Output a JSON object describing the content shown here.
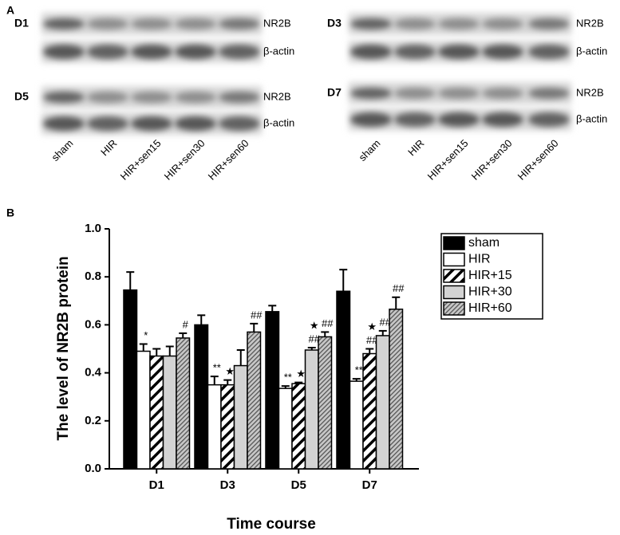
{
  "blots": {
    "panel_label": "A",
    "lanes": [
      "sham",
      "HIR",
      "HIR+sen15",
      "HIR+sen30",
      "HIR+sen60"
    ],
    "panels": [
      {
        "label": "D1",
        "rows": [
          "NR2B",
          "β-actin"
        ]
      },
      {
        "label": "D3",
        "rows": [
          "NR2B",
          "β-actin"
        ]
      },
      {
        "label": "D5",
        "rows": [
          "NR2B",
          "β-actin"
        ]
      },
      {
        "label": "D7",
        "rows": [
          "NR2B",
          "β-actin"
        ]
      }
    ]
  },
  "chart_data": {
    "type": "bar",
    "panel_label": "B",
    "ylabel": "The level of NR2B protein",
    "xlabel": "Time course",
    "categories": [
      "D1",
      "D3",
      "D5",
      "D7"
    ],
    "ylim": [
      0,
      1.0
    ],
    "yticks": [
      {
        "value": 0,
        "label": "0.0"
      },
      0.2,
      0.4,
      0.6,
      0.8,
      {
        "value": 1.0,
        "label": "1.0"
      }
    ],
    "legend": "upper right",
    "series": [
      {
        "name": "sham",
        "color": "#000000",
        "values": [
          0.745,
          0.6,
          0.655,
          0.74
        ],
        "errors": [
          0.075,
          0.04,
          0.025,
          0.09
        ],
        "annotations": [
          null,
          null,
          null,
          null
        ]
      },
      {
        "name": "HIR",
        "color": "#ffffff",
        "values": [
          0.49,
          0.35,
          0.335,
          0.365
        ],
        "errors": [
          0.03,
          0.035,
          0.01,
          0.01
        ],
        "annotations": [
          [
            "*"
          ],
          [
            "**"
          ],
          [
            "**"
          ],
          [
            "**"
          ]
        ]
      },
      {
        "name": "HIR+15",
        "color": "#ffffff",
        "pattern": "wide-hatch",
        "values": [
          0.47,
          0.35,
          0.355,
          0.48
        ],
        "errors": [
          0.03,
          0.02,
          0.005,
          0.02
        ],
        "annotations": [
          null,
          [
            "★"
          ],
          [
            "★"
          ],
          [
            "★",
            "##"
          ]
        ]
      },
      {
        "name": "HIR+30",
        "color": "#d3d3d3",
        "values": [
          0.47,
          0.43,
          0.495,
          0.555
        ],
        "errors": [
          0.04,
          0.065,
          0.01,
          0.02
        ],
        "annotations": [
          null,
          null,
          [
            "★",
            "##"
          ],
          [
            "##"
          ]
        ]
      },
      {
        "name": "HIR+60",
        "color": "#c8c8c8",
        "pattern": "fine-hatch",
        "values": [
          0.545,
          0.57,
          0.55,
          0.665
        ],
        "errors": [
          0.02,
          0.035,
          0.02,
          0.05
        ],
        "annotations": [
          [
            "#"
          ],
          [
            "##"
          ],
          [
            "##"
          ],
          [
            "##"
          ]
        ]
      }
    ]
  }
}
